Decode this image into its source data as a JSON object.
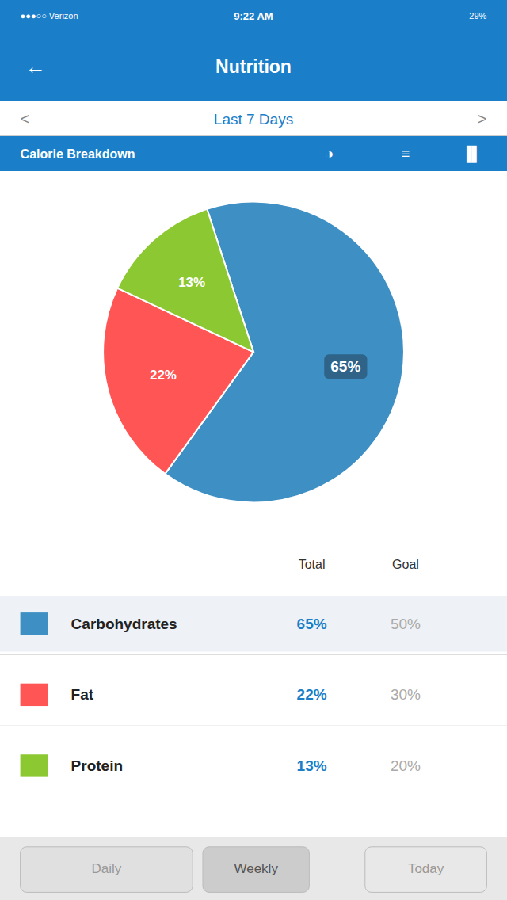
{
  "chart_data": {
    "type": "pie",
    "title": "Calorie Breakdown",
    "categories": [
      "Carbohydrates",
      "Fat",
      "Protein"
    ],
    "values": [
      65,
      22,
      13
    ],
    "value_labels": [
      "65%",
      "22%",
      "13%"
    ],
    "colors": [
      "#3d8fc4",
      "#ff5555",
      "#8cc832"
    ],
    "data_labels": true
  },
  "page": {
    "status_time": "9:22 AM",
    "status_left": "●●●○○ Verizon",
    "status_right": "29%",
    "nav_back": "←",
    "nav_title": "Nutrition",
    "period_prev": "<",
    "period_text": "Last 7 Days",
    "period_next": ">",
    "section_icons": [
      "◑",
      "≡",
      "▐▌"
    ],
    "table_headers": [
      "Total",
      "Goal"
    ],
    "table_goals": [
      "50%",
      "30%",
      "20%"
    ],
    "buttons": [
      "Daily",
      "Weekly",
      "Today"
    ]
  }
}
